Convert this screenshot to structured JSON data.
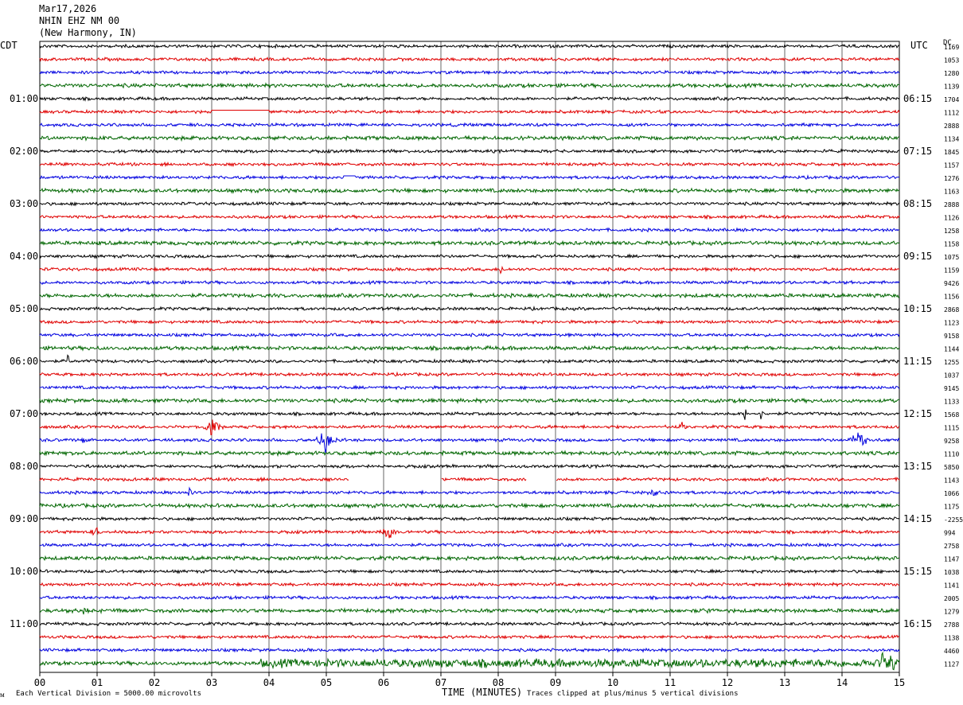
{
  "header": {
    "date": "Mar17,2026",
    "station": "NHIN EHZ NM 00",
    "location": "(New Harmony, IN)"
  },
  "left_tz": "CDT",
  "right_tz": "UTC",
  "dc_header": "DC",
  "footer": {
    "scale_note": "Each Vertical Division = 5000.00 microvolts",
    "clip_note": "Traces clipped at plus/minus 5 vertical divisions",
    "corner_mark": "ᴍ"
  },
  "chart_data": {
    "type": "line",
    "title": "",
    "xlabel": "TIME (MINUTES)",
    "x_ticks": [
      "00",
      "01",
      "02",
      "03",
      "04",
      "05",
      "06",
      "07",
      "08",
      "09",
      "10",
      "11",
      "12",
      "13",
      "14",
      "15"
    ],
    "xlim": [
      0,
      15
    ],
    "minutes_per_line": 15,
    "trace_colors": [
      "#000000",
      "#e00000",
      "#0000e0",
      "#006600"
    ],
    "left_hour_labels": [
      "01:00",
      "02:00",
      "03:00",
      "04:00",
      "05:00",
      "06:00",
      "07:00",
      "08:00",
      "09:00",
      "10:00",
      "11:00"
    ],
    "right_hour_labels": [
      "06:15",
      "07:15",
      "08:15",
      "09:15",
      "10:15",
      "11:15",
      "12:15",
      "13:15",
      "14:15",
      "15:15",
      "16:15"
    ],
    "dc_offsets": [
      "1169",
      "1053",
      "1280",
      "1139",
      "1704",
      "1112",
      "2888",
      "1134",
      "1845",
      "1157",
      "1276",
      "1163",
      "2888",
      "1126",
      "1258",
      "1158",
      "1075",
      "1159",
      "9426",
      "1156",
      "2868",
      "1123",
      "9158",
      "1144",
      "1255",
      "1037",
      "9145",
      "1133",
      "1568",
      "1115",
      "9258",
      "1110",
      "5850",
      "1143",
      "1066",
      "1175",
      "-2255",
      "994",
      "2758",
      "1147",
      "1038",
      "1141",
      "2005",
      "1279",
      "2788",
      "1138",
      "4460",
      "1127"
    ],
    "events": [
      {
        "trace": 5,
        "minute": 3.0,
        "kind": "flat",
        "end_minute": 4.0
      },
      {
        "trace": 10,
        "minute": 5.3,
        "kind": "flat",
        "end_minute": 5.5
      },
      {
        "trace": 17,
        "minute": 8.05,
        "kind": "spike",
        "amp": 8
      },
      {
        "trace": 24,
        "minute": 0.5,
        "kind": "spike",
        "amp": 9
      },
      {
        "trace": 28,
        "minute": 12.3,
        "kind": "spike",
        "amp": 8
      },
      {
        "trace": 28,
        "minute": 12.6,
        "kind": "spike",
        "amp": 7
      },
      {
        "trace": 29,
        "minute": 3.0,
        "kind": "burst",
        "amp": 12
      },
      {
        "trace": 29,
        "minute": 11.2,
        "kind": "burst",
        "amp": 5
      },
      {
        "trace": 30,
        "minute": 5.0,
        "kind": "burst",
        "amp": 14
      },
      {
        "trace": 30,
        "minute": 14.3,
        "kind": "burst",
        "amp": 12
      },
      {
        "trace": 30,
        "minute": 0.8,
        "kind": "burst",
        "amp": 5
      },
      {
        "trace": 33,
        "minute": 5.4,
        "kind": "gap",
        "end_minute": 7.0
      },
      {
        "trace": 33,
        "minute": 8.5,
        "kind": "gap",
        "end_minute": 9.0
      },
      {
        "trace": 34,
        "minute": 2.6,
        "kind": "burst",
        "amp": 6
      },
      {
        "trace": 34,
        "minute": 10.7,
        "kind": "burst",
        "amp": 5
      },
      {
        "trace": 37,
        "minute": 6.1,
        "kind": "burst",
        "amp": 8
      },
      {
        "trace": 37,
        "minute": 1.0,
        "kind": "burst",
        "amp": 5
      },
      {
        "trace": 43,
        "minute": 0.8,
        "kind": "burst",
        "amp": 5
      },
      {
        "trace": 43,
        "minute": 11.6,
        "kind": "burst",
        "amp": 4
      },
      {
        "trace": 47,
        "minute": 14.8,
        "kind": "burst",
        "amp": 12
      }
    ]
  }
}
